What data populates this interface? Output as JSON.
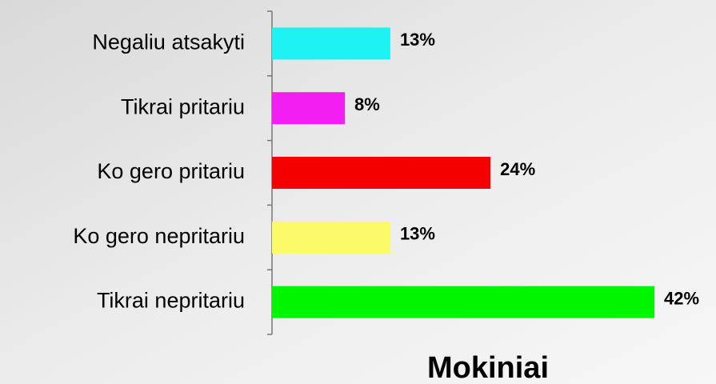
{
  "chart_data": {
    "type": "bar",
    "orientation": "horizontal",
    "title": "Mokiniai",
    "categories": [
      "Negaliu atsakyti",
      "Tikrai pritariu",
      "Ko gero pritariu",
      "Ko gero nepritariu",
      "Tikrai nepritariu"
    ],
    "values": [
      13,
      8,
      24,
      13,
      42
    ],
    "value_labels": [
      "13%",
      "8%",
      "24%",
      "13%",
      "42%"
    ],
    "colors": [
      "#1ff2f2",
      "#f21ef2",
      "#f50000",
      "#fbfb6a",
      "#00f500"
    ]
  }
}
